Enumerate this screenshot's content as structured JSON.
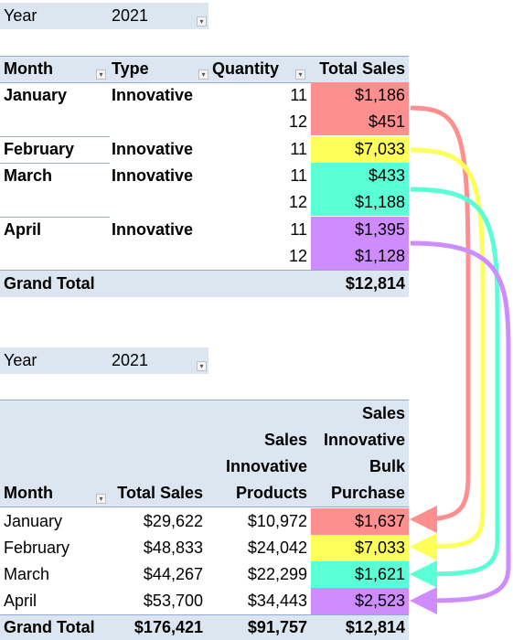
{
  "colors": {
    "header_bg": "#dce6f1",
    "red": "#ff8f8f",
    "yellow": "#ffff5a",
    "teal": "#5affd6",
    "purple": "#cf8cff"
  },
  "pivot1": {
    "filter_label": "Year",
    "filter_value": "2021",
    "headers": [
      "Month",
      "Type",
      "Quantity",
      "Total Sales"
    ],
    "rows": [
      {
        "month": "January",
        "type": "Innovative",
        "qty": "11",
        "sales": "$1,186",
        "color": "#ff8f8f"
      },
      {
        "month": "",
        "type": "",
        "qty": "12",
        "sales": "$451",
        "color": "#ff8f8f"
      },
      {
        "month": "February",
        "type": "Innovative",
        "qty": "11",
        "sales": "$7,033",
        "color": "#ffff5a"
      },
      {
        "month": "March",
        "type": "Innovative",
        "qty": "11",
        "sales": "$433",
        "color": "#5affd6"
      },
      {
        "month": "",
        "type": "",
        "qty": "12",
        "sales": "$1,188",
        "color": "#5affd6"
      },
      {
        "month": "April",
        "type": "Innovative",
        "qty": "11",
        "sales": "$1,395",
        "color": "#cf8cff"
      },
      {
        "month": "",
        "type": "",
        "qty": "12",
        "sales": "$1,128",
        "color": "#cf8cff"
      }
    ],
    "grand_total_label": "Grand Total",
    "grand_total_value": "$12,814"
  },
  "pivot2": {
    "filter_label": "Year",
    "filter_value": "2021",
    "header_stack": {
      "col3": [
        "Sales",
        "Innovative",
        "Products"
      ],
      "col4": [
        "Sales",
        "Innovative",
        "Bulk",
        "Purchase"
      ]
    },
    "headers": [
      "Month",
      "Total Sales"
    ],
    "rows": [
      {
        "month": "January",
        "total": "$29,622",
        "products": "$10,972",
        "bulk": "$1,637",
        "color": "#ff8f8f"
      },
      {
        "month": "February",
        "total": "$48,833",
        "products": "$24,042",
        "bulk": "$7,033",
        "color": "#ffff5a"
      },
      {
        "month": "March",
        "total": "$44,267",
        "products": "$22,299",
        "bulk": "$1,621",
        "color": "#5affd6"
      },
      {
        "month": "April",
        "total": "$53,700",
        "products": "$34,443",
        "bulk": "$2,523",
        "color": "#cf8cff"
      }
    ],
    "grand_total_label": "Grand Total",
    "grand_total_values": [
      "$176,421",
      "$91,757",
      "$12,814"
    ]
  }
}
